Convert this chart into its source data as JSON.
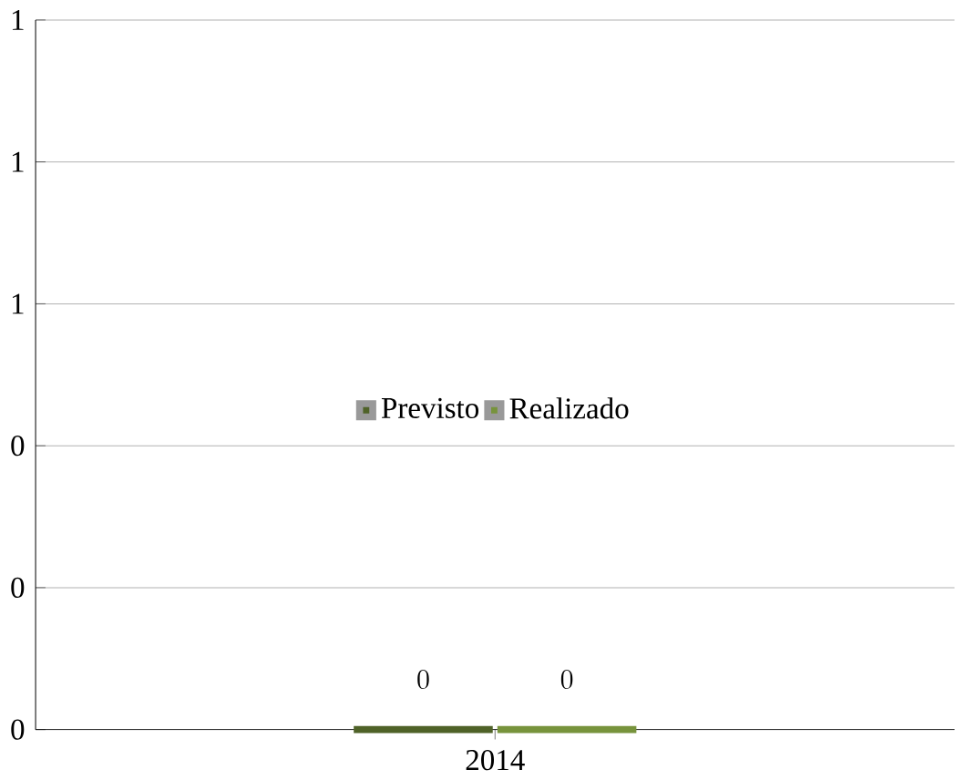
{
  "chart_data": {
    "type": "bar",
    "categories": [
      "2014"
    ],
    "series": [
      {
        "name": "Previsto",
        "color": "#4f6228",
        "values": [
          0
        ]
      },
      {
        "name": "Realizado",
        "color": "#77933c",
        "values": [
          0
        ]
      }
    ],
    "ylim": [
      0,
      1
    ],
    "yticks": [
      {
        "value": 0,
        "label": "0"
      },
      {
        "value": 0.2,
        "label": "0"
      },
      {
        "value": 0.4,
        "label": "0"
      },
      {
        "value": 0.6,
        "label": "1"
      },
      {
        "value": 0.8,
        "label": "1"
      },
      {
        "value": 1,
        "label": "1"
      }
    ],
    "grid": "y",
    "legend": "center",
    "data_labels": true
  }
}
